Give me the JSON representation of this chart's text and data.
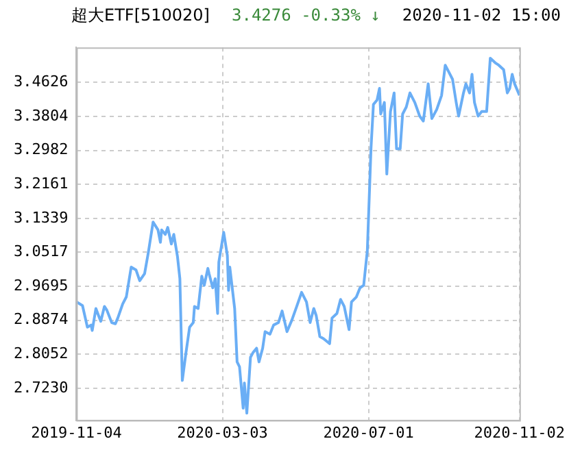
{
  "chart_data": {
    "type": "line",
    "title": "超大ETF[510020]",
    "subtitle": "3.4276  -0.33% ↓",
    "annotations": [
      "2020-11-02 15:00"
    ],
    "x": [
      "2019-11-04",
      "2019-11-09",
      "2019-11-13",
      "2019-11-16",
      "2019-11-17",
      "2019-11-20",
      "2019-11-24",
      "2019-11-27",
      "2019-11-29",
      "2019-12-03",
      "2019-12-06",
      "2019-12-08",
      "2019-12-12",
      "2019-12-15",
      "2019-12-19",
      "2019-12-23",
      "2019-12-26",
      "2019-12-30",
      "2020-01-02",
      "2020-01-06",
      "2020-01-10",
      "2020-01-12",
      "2020-01-13",
      "2020-01-16",
      "2020-01-18",
      "2020-01-21",
      "2020-01-23",
      "2020-01-26",
      "2020-01-28",
      "2020-01-30",
      "2020-02-02",
      "2020-02-05",
      "2020-02-08",
      "2020-02-09",
      "2020-02-12",
      "2020-02-15",
      "2020-02-17",
      "2020-02-20",
      "2020-02-21",
      "2020-02-24",
      "2020-02-26",
      "2020-02-28",
      "2020-02-29",
      "2020-03-04",
      "2020-03-07",
      "2020-03-08",
      "2020-03-09",
      "2020-03-13",
      "2020-03-15",
      "2020-03-17",
      "2020-03-20",
      "2020-03-21",
      "2020-03-23",
      "2020-03-26",
      "2020-03-28",
      "2020-03-31",
      "2020-04-02",
      "2020-04-05",
      "2020-04-07",
      "2020-04-11",
      "2020-04-14",
      "2020-04-18",
      "2020-04-21",
      "2020-04-25",
      "2020-04-29",
      "2020-05-03",
      "2020-05-07",
      "2020-05-11",
      "2020-05-14",
      "2020-05-17",
      "2020-05-19",
      "2020-05-22",
      "2020-05-25",
      "2020-05-30",
      "2020-06-01",
      "2020-06-05",
      "2020-06-08",
      "2020-06-11",
      "2020-06-15",
      "2020-06-17",
      "2020-06-21",
      "2020-06-24",
      "2020-06-27",
      "2020-06-30",
      "2020-07-03",
      "2020-07-05",
      "2020-07-08",
      "2020-07-10",
      "2020-07-11",
      "2020-07-14",
      "2020-07-16",
      "2020-07-19",
      "2020-07-22",
      "2020-07-24",
      "2020-07-27",
      "2020-07-29",
      "2020-08-01",
      "2020-08-04",
      "2020-08-08",
      "2020-08-12",
      "2020-08-15",
      "2020-08-19",
      "2020-08-22",
      "2020-08-26",
      "2020-08-30",
      "2020-09-02",
      "2020-09-05",
      "2020-09-08",
      "2020-09-11",
      "2020-09-13",
      "2020-09-17",
      "2020-09-19",
      "2020-09-22",
      "2020-09-24",
      "2020-09-26",
      "2020-09-29",
      "2020-10-02",
      "2020-10-06",
      "2020-10-09",
      "2020-10-13",
      "2020-10-16",
      "2020-10-20",
      "2020-10-23",
      "2020-10-25",
      "2020-10-27",
      "2020-10-29",
      "2020-11-02"
    ],
    "series": [
      {
        "color": "#6aaef5",
        "values": [
          2.932,
          2.923,
          2.871,
          2.876,
          2.863,
          2.916,
          2.885,
          2.921,
          2.912,
          2.882,
          2.879,
          2.893,
          2.927,
          2.944,
          3.016,
          3.009,
          2.983,
          3.0,
          3.05,
          3.125,
          3.106,
          3.076,
          3.106,
          3.095,
          3.112,
          3.072,
          3.095,
          3.042,
          2.988,
          2.742,
          2.809,
          2.871,
          2.882,
          2.921,
          2.916,
          2.994,
          2.972,
          3.013,
          3.0,
          2.966,
          2.988,
          2.904,
          3.028,
          3.1,
          3.044,
          2.96,
          3.016,
          2.916,
          2.787,
          2.775,
          2.675,
          2.736,
          2.663,
          2.798,
          2.809,
          2.82,
          2.787,
          2.82,
          2.86,
          2.854,
          2.876,
          2.882,
          2.91,
          2.86,
          2.888,
          2.921,
          2.955,
          2.932,
          2.882,
          2.916,
          2.899,
          2.848,
          2.843,
          2.831,
          2.893,
          2.904,
          2.938,
          2.921,
          2.865,
          2.932,
          2.944,
          2.966,
          2.972,
          3.056,
          3.302,
          3.409,
          3.42,
          3.448,
          3.386,
          3.414,
          3.241,
          3.392,
          3.437,
          3.302,
          3.302,
          3.386,
          3.403,
          3.437,
          3.414,
          3.381,
          3.369,
          3.459,
          3.375,
          3.397,
          3.431,
          3.504,
          3.487,
          3.47,
          3.414,
          3.381,
          3.437,
          3.459,
          3.437,
          3.482,
          3.414,
          3.381,
          3.392,
          3.392,
          3.521,
          3.51,
          3.504,
          3.493,
          3.437,
          3.448,
          3.482,
          3.459,
          3.431
        ]
      }
    ],
    "xlim": [
      "2019-11-04",
      "2020-11-02"
    ],
    "xticks": [
      "2019-11-04",
      "2020-03-03",
      "2020-07-01",
      "2020-11-02"
    ],
    "ylim": [
      2.646,
      3.547
    ],
    "yticks": [
      {
        "value": 2.723,
        "label": "2.7230"
      },
      2.8052,
      2.8874,
      2.9695,
      3.0517,
      3.1339,
      3.2161,
      3.2982,
      3.3804,
      3.4626
    ],
    "grid": true
  }
}
